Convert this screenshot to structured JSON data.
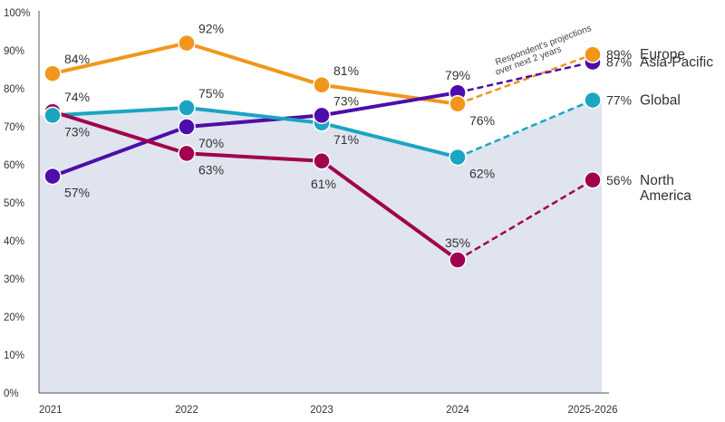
{
  "chart_data": {
    "type": "line",
    "title": "",
    "xlabel": "",
    "ylabel": "",
    "categories": [
      "2021",
      "2022",
      "2023",
      "2024",
      "2025-2026"
    ],
    "ylim": [
      0,
      100
    ],
    "yticks": [
      "0%",
      "10%",
      "20%",
      "30%",
      "40%",
      "50%",
      "60%",
      "70%",
      "80%",
      "90%",
      "100%"
    ],
    "projection_note": [
      "Respondent's projections",
      "over next 2 years"
    ],
    "projected_from_index": 3,
    "series": [
      {
        "id": "europe",
        "name": "Europe",
        "name_lines": [
          "Europe"
        ],
        "color": "#F2961B",
        "values": [
          84,
          92,
          81,
          76,
          89
        ],
        "labels": [
          "84%",
          "92%",
          "81%",
          "76%",
          "89%"
        ],
        "label_pos": [
          "right-above",
          "right-above",
          "right-above",
          "right-below",
          "end"
        ]
      },
      {
        "id": "asia-pacific",
        "name": "Asia-Pacific",
        "name_lines": [
          "Asia-Pacific"
        ],
        "color": "#4E0DAA",
        "values": [
          57,
          70,
          73,
          79,
          87
        ],
        "labels": [
          "57%",
          "70%",
          "73%",
          "79%",
          "87%"
        ],
        "label_pos": [
          "right-below",
          "right-below",
          "right-above",
          "above",
          "end"
        ]
      },
      {
        "id": "global",
        "name": "Global",
        "name_lines": [
          "Global"
        ],
        "color": "#1BA5C2",
        "values": [
          73,
          75,
          71,
          62,
          77
        ],
        "labels": [
          "73%",
          "75%",
          "71%",
          "62%",
          "77%"
        ],
        "label_pos": [
          "right-below",
          "right-above",
          "right-below",
          "right-below",
          "end"
        ],
        "area": true,
        "area_color": "#DFE4EE"
      },
      {
        "id": "north-america",
        "name": "North America",
        "name_lines": [
          "North",
          "America"
        ],
        "color": "#A0004E",
        "values": [
          74,
          63,
          61,
          35,
          56
        ],
        "labels": [
          "74%",
          "63%",
          "61%",
          "35%",
          "56%"
        ],
        "label_pos": [
          "right-above",
          "right-below",
          "below",
          "above",
          "end"
        ]
      }
    ]
  }
}
